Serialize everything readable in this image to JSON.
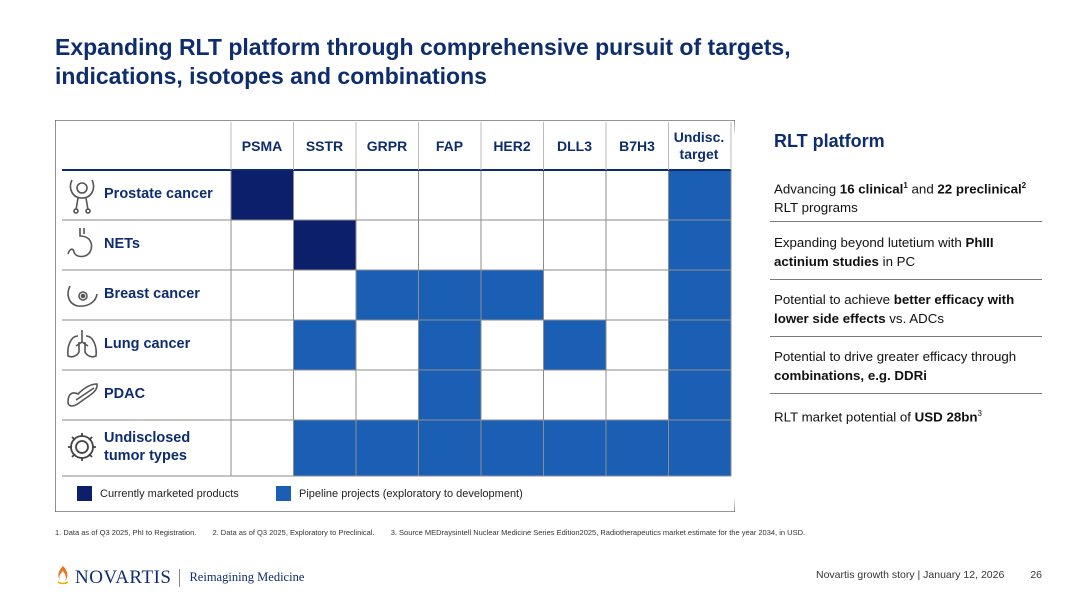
{
  "title_line1": "Expanding RLT platform through comprehensive pursuit of targets,",
  "title_line2": "indications, isotopes and combinations",
  "columns": [
    "PSMA",
    "SSTR",
    "GRPR",
    "FAP",
    "HER2",
    "DLL3",
    "B7H3",
    "Undisc.\ntarget"
  ],
  "rows": [
    {
      "label": "Prostate cancer",
      "icon": "prostate-icon",
      "cells": [
        "marketed",
        "",
        "",
        "",
        "",
        "",
        "",
        "pipeline"
      ]
    },
    {
      "label": "NETs",
      "icon": "stomach-icon",
      "cells": [
        "",
        "marketed",
        "",
        "",
        "",
        "",
        "",
        "pipeline"
      ]
    },
    {
      "label": "Breast cancer",
      "icon": "breast-icon",
      "cells": [
        "",
        "",
        "pipeline",
        "pipeline",
        "pipeline",
        "",
        "",
        "pipeline"
      ]
    },
    {
      "label": "Lung cancer",
      "icon": "lungs-icon",
      "cells": [
        "",
        "pipeline",
        "",
        "pipeline",
        "",
        "pipeline",
        "",
        "pipeline"
      ]
    },
    {
      "label": "PDAC",
      "icon": "pancreas-icon",
      "cells": [
        "",
        "",
        "",
        "pipeline",
        "",
        "",
        "",
        "pipeline"
      ]
    },
    {
      "label": "Undisclosed\ntumor types",
      "icon": "gear-icon",
      "cells": [
        "",
        "pipeline",
        "pipeline",
        "pipeline",
        "pipeline",
        "pipeline",
        "pipeline",
        "pipeline"
      ]
    }
  ],
  "legend": {
    "marketed": "Currently marketed products",
    "pipeline": "Pipeline projects (exploratory to development)"
  },
  "colors": {
    "title": "#0e2d6e",
    "marketed": "#0b1f6b",
    "pipeline": "#1b5fb5",
    "grid": "#8c8c8c"
  },
  "side_panel": {
    "title": "RLT platform",
    "b1": {
      "t1": "Advancing ",
      "b1": "16 clinical",
      "s1": "1",
      "t2": " and ",
      "b2": "22 preclinical",
      "s2": "2",
      "t3": " RLT programs"
    },
    "b2": {
      "t1": "Expanding beyond lutetium with ",
      "b1": "PhIII actinium studies",
      "t2": " in PC"
    },
    "b3": {
      "t1": "Potential to achieve ",
      "b1": "better efficacy with lower side effects",
      "t2": " vs. ADCs"
    },
    "b4": {
      "t1": "Potential to drive greater efficacy through ",
      "b1": "combinations, e.g. DDRi"
    },
    "b5": {
      "t1": "RLT market potential of ",
      "b1": "USD 28bn",
      "s1": "3"
    }
  },
  "footnotes": [
    "1. Data as of Q3 2025, PhI to Registration.",
    "2. Data as of Q3 2025, Exploratory to Preclinical.",
    "3. Source MEDraysintell Nuclear Medicine Series Edition2025, Radiotherapeutics market estimate for the year 2034, in USD."
  ],
  "logo": {
    "name": "NOVARTIS",
    "tagline": "Reimagining Medicine"
  },
  "footer": {
    "text": "Novartis growth story | January 12, 2026",
    "page": "26"
  }
}
